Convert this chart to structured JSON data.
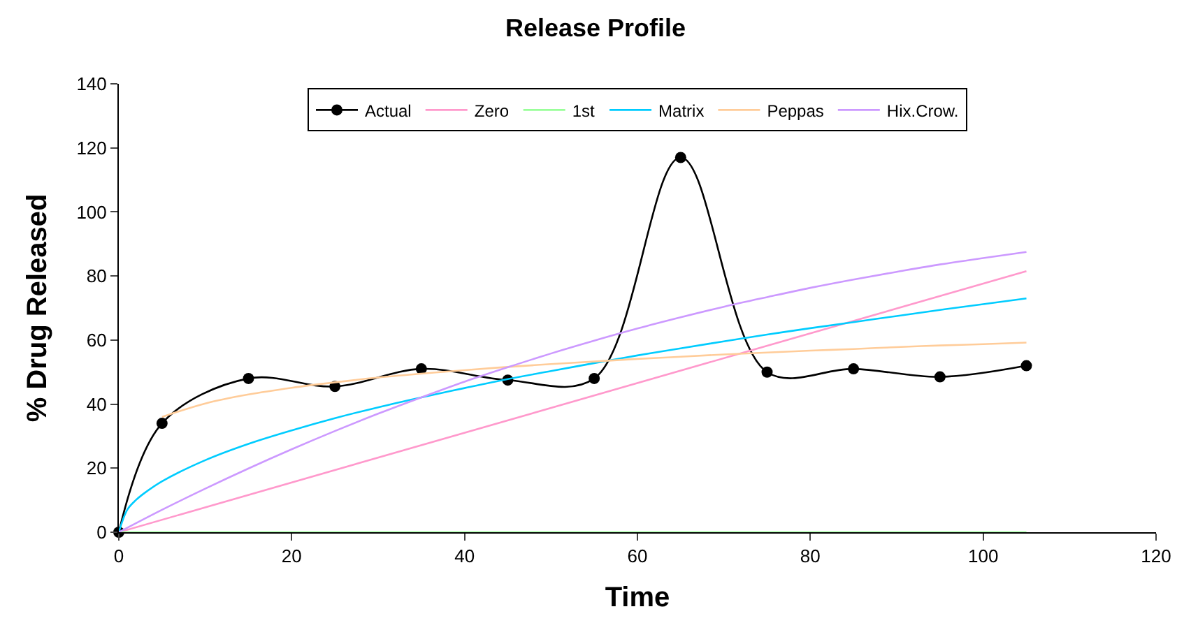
{
  "chart_data": {
    "type": "line",
    "title": "Release Profile",
    "xlabel": "Time",
    "ylabel": "% Drug Released",
    "xlim": [
      0,
      120
    ],
    "xticks": [
      0,
      20,
      40,
      60,
      80,
      100,
      120
    ],
    "ylim": [
      0,
      140
    ],
    "yticks": [
      0,
      20,
      40,
      60,
      80,
      100,
      120,
      140
    ],
    "grid": false,
    "legend": "top",
    "series": [
      {
        "name": "Actual",
        "color": "#000000",
        "marker": "circle",
        "x": [
          0,
          5,
          15,
          25,
          35,
          45,
          55,
          65,
          75,
          85,
          95,
          105
        ],
        "values": [
          0,
          34,
          48,
          45.5,
          51,
          47.5,
          48,
          117,
          50,
          51,
          48.5,
          52
        ]
      },
      {
        "name": "Zero",
        "color": "#ff99cc",
        "marker": "none",
        "x": [
          0,
          105
        ],
        "values": [
          0,
          81.5
        ]
      },
      {
        "name": "1st",
        "color": "#99ff99",
        "marker": "none",
        "x": [
          0,
          105
        ],
        "values": [
          0,
          0
        ]
      },
      {
        "name": "Matrix",
        "color": "#00ccff",
        "marker": "none",
        "x": [
          0,
          1,
          2,
          3,
          5,
          10,
          15,
          20,
          25,
          30,
          35,
          40,
          45,
          50,
          55,
          60,
          65,
          70,
          75,
          80,
          85,
          90,
          95,
          100,
          105
        ],
        "values": [
          0,
          7.1,
          10.1,
          12.3,
          15.9,
          22.5,
          27.6,
          31.8,
          35.6,
          39.0,
          42.1,
          45.0,
          47.8,
          50.3,
          52.8,
          55.2,
          57.4,
          59.6,
          61.7,
          63.7,
          65.6,
          67.5,
          69.4,
          71.2,
          73.0
        ]
      },
      {
        "name": "Peppas",
        "color": "#ffcc99",
        "marker": "none",
        "x": [
          5,
          10,
          15,
          20,
          25,
          30,
          35,
          40,
          45,
          50,
          55,
          60,
          65,
          70,
          75,
          80,
          85,
          90,
          95,
          100,
          105
        ],
        "values": [
          36,
          40.2,
          43.0,
          45.1,
          46.8,
          48.3,
          49.5,
          50.6,
          51.6,
          52.5,
          53.3,
          54.1,
          54.8,
          55.5,
          56.1,
          56.7,
          57.2,
          57.8,
          58.3,
          58.7,
          59.2
        ]
      },
      {
        "name": "Hix.Crow.",
        "color": "#cc99ff",
        "marker": "none",
        "x": [
          0,
          5,
          10,
          15,
          20,
          25,
          30,
          35,
          40,
          45,
          50,
          55,
          60,
          65,
          70,
          75,
          80,
          85,
          90,
          95,
          100,
          105
        ],
        "values": [
          0,
          7.0,
          13.6,
          19.9,
          25.9,
          31.6,
          37.0,
          42.1,
          47.0,
          51.5,
          55.8,
          59.8,
          63.6,
          67.1,
          70.4,
          73.4,
          76.3,
          78.9,
          81.3,
          83.6,
          85.6,
          87.5
        ]
      }
    ]
  }
}
